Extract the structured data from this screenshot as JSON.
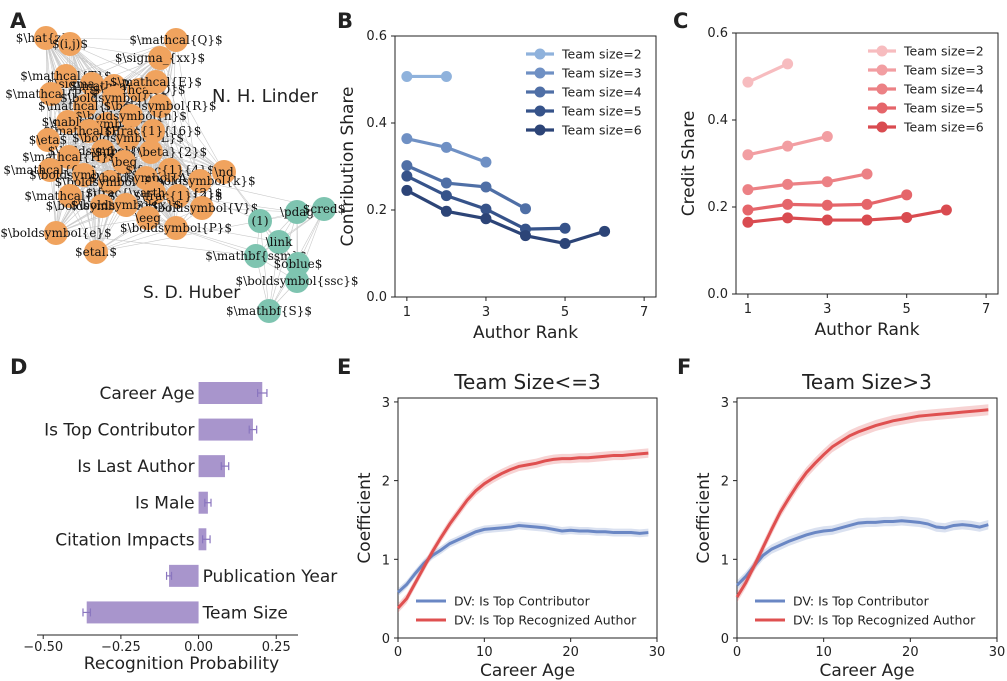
{
  "panels": {
    "A": {
      "letter": "A",
      "group_labels": [
        {
          "text": "N. H. Linder",
          "color": "#f0a35e"
        },
        {
          "text": "S. D. Huber",
          "color": "#7ec4b0"
        }
      ],
      "nodes_orange": [
        "$\\hat{z}$",
        "$(i,j)$",
        "$\\mathcal{Q}$",
        "$\\sigma_{xx}$",
        "$\\mathcal{T}$",
        "$\\sigma_{xy}$",
        "$\\mathcal{J}$",
        "$\\mathcal{D}$",
        "$\\mathcal{E}$",
        "$\\mathcal{P}$",
        "$\\mathcal{N}$",
        "$\\boldsymbol{j}$",
        "$\\boldsymbol{R}$",
        "$\\boldsymbol{z}$",
        "$\\boldsymbol{n}$",
        "$\\nabla$",
        "$\\mathcal{F}$",
        "$\\boldsymbol{L}$",
        "$\\frac{1}{16}$",
        "$\\eta$",
        "$\\boldsymbol{v}$",
        "$\\frac{\\beta}{2}$",
        "$\\mathcal{H}$",
        "$\\mathcal{O}$",
        "$\\boldsymbol{r}$",
        "$\\boldsymbol{y}$",
        "\\beq",
        "$\\frac{1}{4}$",
        "\\nd",
        "$\\boldsymbol{A}$",
        "$\\boldsymbol{k}$",
        "$\\mathcal{L}$",
        "$\\frac{\\vartheta}{2}$",
        "$\\frac{1}{2}$",
        "$\\boldsymbol{E}$",
        "$\\boldsymbol{x}$",
        "$\\boldsymbol{V}$",
        "\\eeq",
        "$\\boldsymbol{P}$",
        "$\\boldsymbol{e}$",
        "$etal.$"
      ],
      "nodes_teal": [
        "(1)",
        "\\pdag",
        "$cred$",
        "\\link",
        "$\\mathbf{ssm}$",
        "$oblue$",
        "$\\boldsymbol{ssc}$",
        "$\\mathbf{S}$"
      ],
      "colors": {
        "orange": "#f0a35e",
        "teal": "#7ec4b0"
      }
    },
    "B": {
      "letter": "B",
      "chart_data": {
        "type": "line",
        "xlabel": "Author Rank",
        "ylabel": "Contribution Share",
        "xlim": [
          0.7,
          7.3
        ],
        "ylim": [
          0.0,
          0.6
        ],
        "xticks": [
          1,
          3,
          5,
          7
        ],
        "yticks": [
          0.0,
          0.2,
          0.4,
          0.6
        ],
        "legend": "top-right",
        "series": [
          {
            "name": "Team size=2",
            "color": "#8fb2dc",
            "x": [
              1,
              2
            ],
            "values": [
              0.507,
              0.507
            ]
          },
          {
            "name": "Team size=3",
            "color": "#6f90c4",
            "x": [
              1,
              2,
              3
            ],
            "values": [
              0.364,
              0.344,
              0.31
            ]
          },
          {
            "name": "Team size=4",
            "color": "#4f6fa6",
            "x": [
              1,
              2,
              3,
              4
            ],
            "values": [
              0.302,
              0.262,
              0.253,
              0.203
            ]
          },
          {
            "name": "Team size=5",
            "color": "#36538a",
            "x": [
              1,
              2,
              3,
              4,
              5
            ],
            "values": [
              0.278,
              0.233,
              0.202,
              0.156,
              0.158
            ]
          },
          {
            "name": "Team size=6",
            "color": "#2c4477",
            "x": [
              1,
              2,
              3,
              4,
              5,
              6
            ],
            "values": [
              0.245,
              0.197,
              0.18,
              0.141,
              0.123,
              0.151
            ]
          }
        ]
      }
    },
    "C": {
      "letter": "C",
      "chart_data": {
        "type": "line",
        "xlabel": "Author Rank",
        "ylabel": "Credit Share",
        "xlim": [
          0.7,
          7.3
        ],
        "ylim": [
          0.0,
          0.6
        ],
        "xticks": [
          1,
          3,
          5,
          7
        ],
        "yticks": [
          0.0,
          0.2,
          0.4,
          0.6
        ],
        "legend": "top-right",
        "series": [
          {
            "name": "Team size=2",
            "color": "#f7bcbf",
            "x": [
              1,
              2
            ],
            "values": [
              0.487,
              0.529
            ]
          },
          {
            "name": "Team size=3",
            "color": "#f29ea2",
            "x": [
              1,
              2,
              3
            ],
            "values": [
              0.32,
              0.34,
              0.362
            ]
          },
          {
            "name": "Team size=4",
            "color": "#ec8185",
            "x": [
              1,
              2,
              3,
              4
            ],
            "values": [
              0.24,
              0.252,
              0.258,
              0.276
            ]
          },
          {
            "name": "Team size=5",
            "color": "#e5656a",
            "x": [
              1,
              2,
              3,
              4,
              5
            ],
            "values": [
              0.193,
              0.206,
              0.204,
              0.206,
              0.228
            ]
          },
          {
            "name": "Team size=6",
            "color": "#d94b50",
            "x": [
              1,
              2,
              3,
              4,
              5,
              6
            ],
            "values": [
              0.165,
              0.175,
              0.17,
              0.17,
              0.176,
              0.193
            ]
          }
        ]
      }
    },
    "D": {
      "letter": "D",
      "chart_data": {
        "type": "bar",
        "orientation": "horizontal",
        "xlabel": "Recognition Probability",
        "xlim": [
          -0.52,
          0.32
        ],
        "xticks": [
          -0.5,
          -0.25,
          0.0,
          0.25
        ],
        "xtick_labels": [
          "−0.50",
          "−0.25",
          "0.00",
          "0.25"
        ],
        "color": "#a895cc",
        "categories": [
          "Career Age",
          "Is Top Contributor",
          "Is Last Author",
          "Is Male",
          "Citation Impacts",
          "Publication Year",
          "Team Size"
        ],
        "values": [
          0.205,
          0.175,
          0.085,
          0.03,
          0.025,
          -0.095,
          -0.36
        ],
        "errors": [
          0.015,
          0.012,
          0.012,
          0.01,
          0.012,
          0.008,
          0.012
        ]
      }
    },
    "E": {
      "letter": "E",
      "chart_data": {
        "type": "line",
        "title": "Team Size<=3",
        "xlabel": "Career Age",
        "ylabel": "Coefficient",
        "xlim": [
          0,
          30
        ],
        "ylim": [
          0,
          3.05
        ],
        "xticks": [
          0,
          10,
          20,
          30
        ],
        "yticks": [
          0,
          1,
          2,
          3
        ],
        "legend": "lower-right",
        "series": [
          {
            "name": "DV: Is Top Contributor",
            "color": "#6a87c4",
            "band": 0.05,
            "x": [
              0,
              1,
              2,
              3,
              4,
              5,
              6,
              7,
              8,
              9,
              10,
              11,
              12,
              13,
              14,
              15,
              16,
              17,
              18,
              19,
              20,
              21,
              22,
              23,
              24,
              25,
              26,
              27,
              28,
              29
            ],
            "values": [
              0.58,
              0.68,
              0.82,
              0.95,
              1.05,
              1.12,
              1.2,
              1.25,
              1.3,
              1.35,
              1.38,
              1.39,
              1.4,
              1.41,
              1.43,
              1.42,
              1.41,
              1.4,
              1.38,
              1.36,
              1.37,
              1.36,
              1.36,
              1.35,
              1.35,
              1.34,
              1.34,
              1.34,
              1.33,
              1.34
            ]
          },
          {
            "name": "DV: Is Top Recognized Author",
            "color": "#df5050",
            "band": 0.06,
            "x": [
              0,
              1,
              2,
              3,
              4,
              5,
              6,
              7,
              8,
              9,
              10,
              11,
              12,
              13,
              14,
              15,
              16,
              17,
              18,
              19,
              20,
              21,
              22,
              23,
              24,
              25,
              26,
              27,
              28,
              29
            ],
            "values": [
              0.38,
              0.5,
              0.7,
              0.9,
              1.1,
              1.28,
              1.45,
              1.6,
              1.75,
              1.87,
              1.96,
              2.03,
              2.09,
              2.14,
              2.18,
              2.2,
              2.22,
              2.25,
              2.27,
              2.28,
              2.28,
              2.29,
              2.29,
              2.3,
              2.31,
              2.32,
              2.32,
              2.33,
              2.34,
              2.35
            ]
          }
        ]
      }
    },
    "F": {
      "letter": "F",
      "chart_data": {
        "type": "line",
        "title": "Team Size>3",
        "xlabel": "Career Age",
        "ylabel": "Coefficient",
        "xlim": [
          0,
          30
        ],
        "ylim": [
          0,
          3.05
        ],
        "xticks": [
          0,
          10,
          20,
          30
        ],
        "yticks": [
          0,
          1,
          2,
          3
        ],
        "legend": "lower-right",
        "series": [
          {
            "name": "DV: Is Top Contributor",
            "color": "#6a87c4",
            "band": 0.06,
            "x": [
              0,
              1,
              2,
              3,
              4,
              5,
              6,
              7,
              8,
              9,
              10,
              11,
              12,
              13,
              14,
              15,
              16,
              17,
              18,
              19,
              20,
              21,
              22,
              23,
              24,
              25,
              26,
              27,
              28,
              29
            ],
            "values": [
              0.67,
              0.78,
              0.92,
              1.05,
              1.13,
              1.18,
              1.23,
              1.27,
              1.31,
              1.34,
              1.36,
              1.37,
              1.4,
              1.43,
              1.46,
              1.47,
              1.47,
              1.48,
              1.48,
              1.49,
              1.48,
              1.47,
              1.45,
              1.41,
              1.4,
              1.43,
              1.44,
              1.43,
              1.41,
              1.44
            ]
          },
          {
            "name": "DV: Is Top Recognized Author",
            "color": "#df5050",
            "band": 0.07,
            "x": [
              0,
              1,
              2,
              3,
              4,
              5,
              6,
              7,
              8,
              9,
              10,
              11,
              12,
              13,
              14,
              15,
              16,
              17,
              18,
              19,
              20,
              21,
              22,
              23,
              24,
              25,
              26,
              27,
              28,
              29
            ],
            "values": [
              0.52,
              0.7,
              0.92,
              1.15,
              1.38,
              1.6,
              1.78,
              1.95,
              2.1,
              2.22,
              2.33,
              2.43,
              2.5,
              2.57,
              2.62,
              2.66,
              2.7,
              2.73,
              2.76,
              2.78,
              2.8,
              2.82,
              2.83,
              2.84,
              2.85,
              2.86,
              2.87,
              2.88,
              2.89,
              2.9
            ]
          }
        ]
      }
    }
  }
}
